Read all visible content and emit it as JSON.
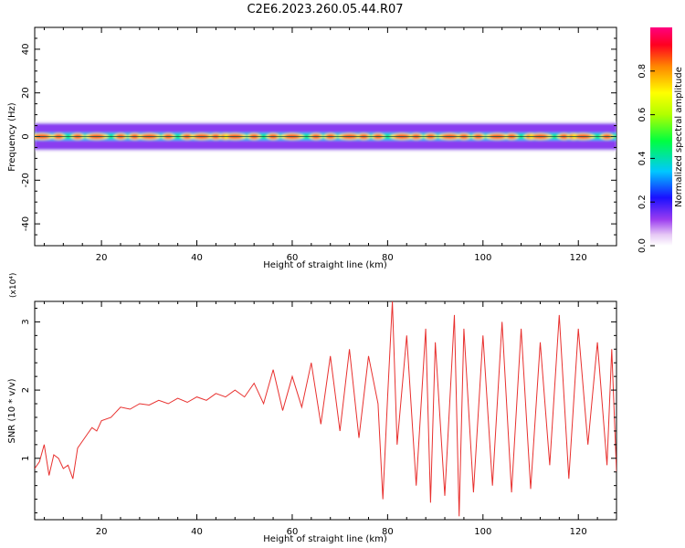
{
  "title": "C2E6.2023.260.05.44.R07",
  "chart_data": [
    {
      "type": "heatmap",
      "xlabel": "Height of straight line (km)",
      "ylabel": "Frequency (Hz)",
      "xlim": [
        6,
        128
      ],
      "ylim": [
        -50,
        50
      ],
      "xticks": [
        20,
        40,
        60,
        80,
        100,
        120
      ],
      "yticks": [
        40,
        20,
        0,
        -20,
        -40
      ],
      "grid": false,
      "colorbar": {
        "label": "Normalized spectral amplitude",
        "ticks": [
          "0.0",
          "0.2",
          "0.4",
          "0.6",
          "0.8"
        ],
        "range": [
          0,
          1
        ]
      },
      "band_center_hz": 0,
      "band_halfwidth_hz": [
        2,
        6
      ],
      "peak_heights_km": [
        7.5,
        11,
        15,
        19,
        24,
        27,
        30,
        34,
        38,
        41,
        44,
        46,
        48,
        52,
        56,
        60,
        65,
        68,
        72,
        75,
        78,
        83,
        86,
        89,
        93,
        96,
        99,
        103,
        106,
        110,
        112,
        117,
        119,
        121,
        126
      ]
    },
    {
      "type": "line",
      "xlabel": "Height of straight line (km)",
      "ylabel": "SNR (10 * v/v)",
      "y_multiplier": "(x10⁴)",
      "xlim": [
        6,
        128
      ],
      "ylim": [
        0.1,
        3.3
      ],
      "xticks": [
        20,
        40,
        60,
        80,
        100,
        120
      ],
      "yticks": [
        1,
        2,
        3
      ],
      "grid": false,
      "series": [
        {
          "color": "#e8302e",
          "x": [
            6,
            7,
            8,
            9,
            10,
            11,
            12,
            13,
            14,
            15,
            16,
            17,
            18,
            19,
            20,
            22,
            24,
            26,
            28,
            30,
            32,
            34,
            36,
            38,
            40,
            42,
            44,
            46,
            48,
            50,
            52,
            54,
            56,
            58,
            60,
            62,
            64,
            66,
            68,
            70,
            72,
            74,
            76,
            78,
            79,
            80,
            81,
            82,
            84,
            86,
            88,
            89,
            90,
            92,
            94,
            95,
            96,
            98,
            100,
            102,
            104,
            106,
            108,
            110,
            112,
            114,
            116,
            118,
            120,
            122,
            124,
            126,
            127,
            128
          ],
          "y": [
            0.85,
            0.95,
            1.2,
            0.75,
            1.05,
            1.0,
            0.85,
            0.9,
            0.7,
            1.15,
            1.25,
            1.35,
            1.45,
            1.4,
            1.55,
            1.6,
            1.75,
            1.72,
            1.8,
            1.78,
            1.85,
            1.8,
            1.88,
            1.82,
            1.9,
            1.85,
            1.95,
            1.9,
            2.0,
            1.9,
            2.1,
            1.8,
            2.3,
            1.7,
            2.2,
            1.75,
            2.4,
            1.5,
            2.5,
            1.4,
            2.6,
            1.3,
            2.5,
            1.8,
            0.4,
            1.9,
            3.3,
            1.2,
            2.8,
            0.6,
            2.9,
            0.35,
            2.7,
            0.45,
            3.1,
            0.15,
            2.9,
            0.5,
            2.8,
            0.6,
            3.0,
            0.5,
            2.9,
            0.55,
            2.7,
            0.9,
            3.1,
            0.7,
            2.9,
            1.2,
            2.7,
            0.9,
            2.6,
            0.8
          ]
        }
      ]
    }
  ]
}
